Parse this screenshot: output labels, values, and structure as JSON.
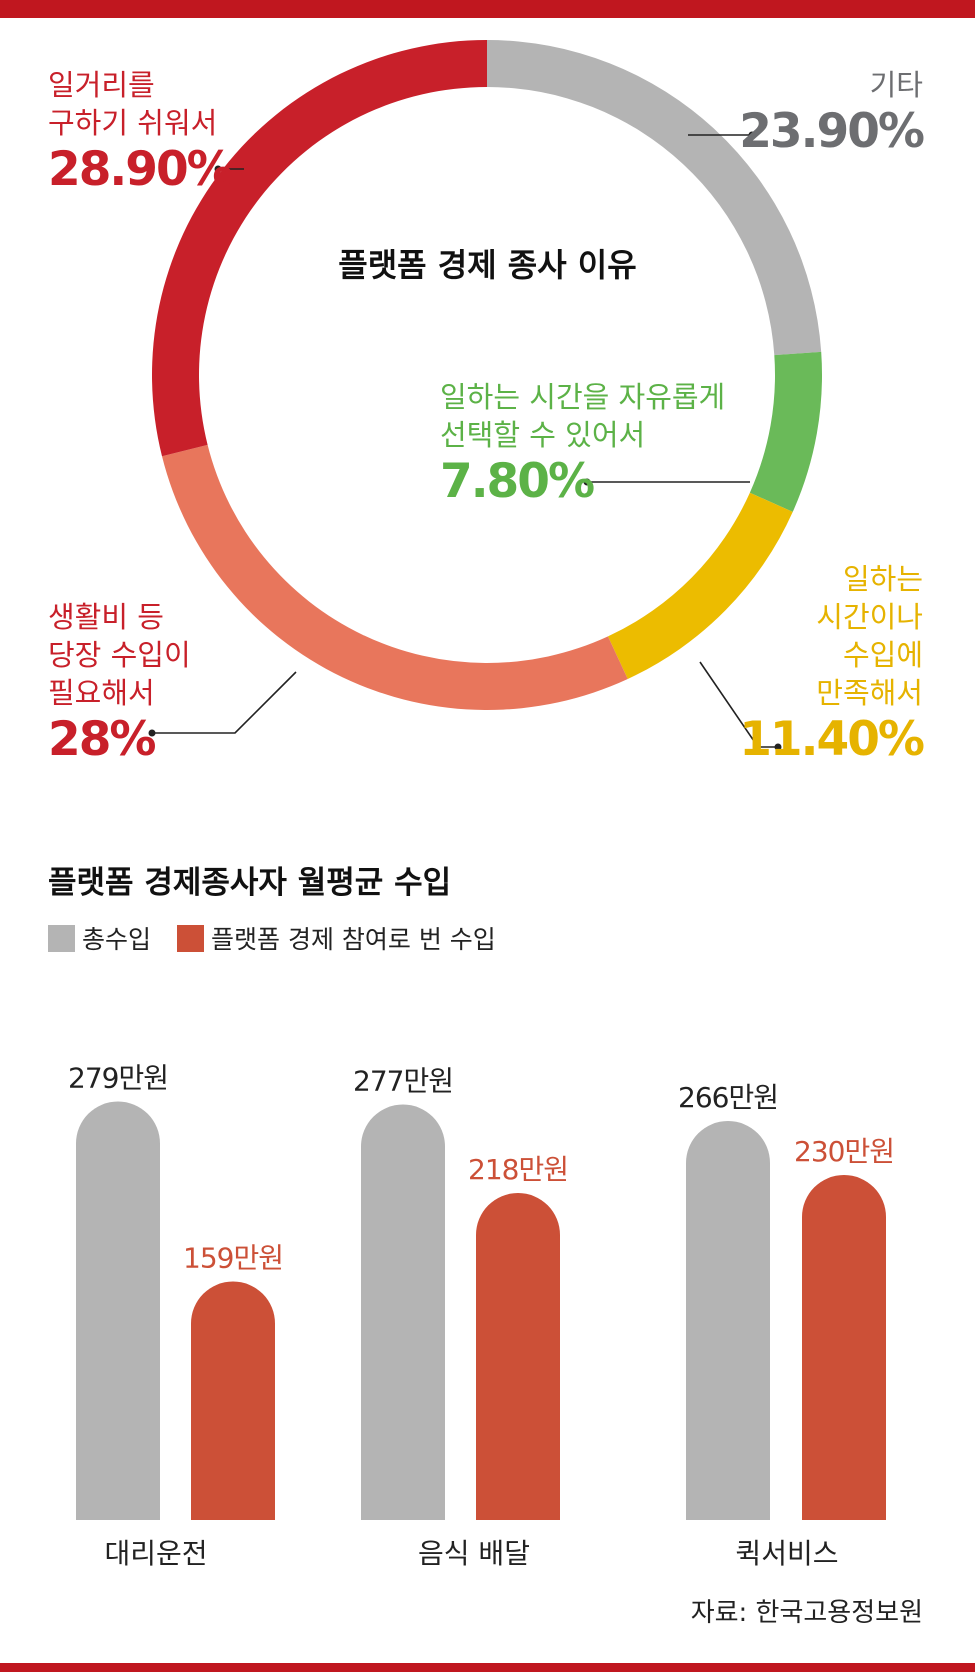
{
  "colors": {
    "accent": "#c0171f",
    "gray": "#b4b4b4",
    "red_dark": "#c8202a",
    "salmon": "#e8765c",
    "green": "#6aba59",
    "yellow": "#ecbc00",
    "bar_red": "#cc5037",
    "other_label": "#6d6e71",
    "green_label": "#5cb247",
    "yellow_label": "#e6b300"
  },
  "chart_data": [
    {
      "type": "pie",
      "title": "플랫폼 경제 종사 이유",
      "slices": [
        {
          "key": "other",
          "label": [
            "기타"
          ],
          "pct_text": "23.90%",
          "value": 23.9,
          "color": "#b4b4b4"
        },
        {
          "key": "free_time",
          "label": [
            "일하는 시간을 자유롭게",
            "선택할 수 있어서"
          ],
          "pct_text": "7.80%",
          "value": 7.8,
          "color": "#6aba59"
        },
        {
          "key": "satisfied",
          "label": [
            "일하는",
            "시간이나",
            "수입에",
            "만족해서"
          ],
          "pct_text": "11.40%",
          "value": 11.4,
          "color": "#ecbc00"
        },
        {
          "key": "living_cost",
          "label": [
            "생활비 등",
            "당장 수입이",
            "필요해서"
          ],
          "pct_text": "28%",
          "value": 28,
          "color": "#e8765c"
        },
        {
          "key": "easy_job",
          "label": [
            "일거리를",
            "구하기 쉬워서"
          ],
          "pct_text": "28.90%",
          "value": 28.9,
          "color": "#c8202a"
        }
      ]
    },
    {
      "type": "bar",
      "title": "플랫폼 경제종사자 월평균 수입",
      "categories": [
        "대리운전",
        "음식 배달",
        "퀵서비스"
      ],
      "series": [
        {
          "name": "총수입",
          "values": [
            279,
            277,
            266
          ],
          "labels": [
            "279만원",
            "277만원",
            "266만원"
          ],
          "color": "#b4b4b4"
        },
        {
          "name": "플랫폼 경제 참여로 번 수입",
          "values": [
            159,
            218,
            230
          ],
          "labels": [
            "159만원",
            "218만원",
            "230만원"
          ],
          "color": "#cc5037"
        }
      ],
      "source": "자료: 한국고용정보원"
    }
  ]
}
